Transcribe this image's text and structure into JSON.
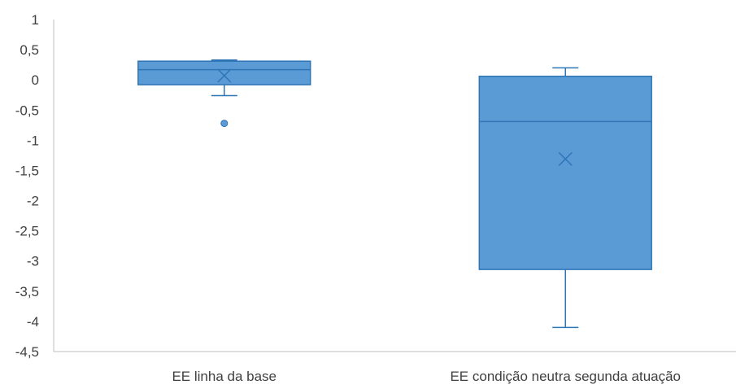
{
  "chart_data": {
    "type": "box",
    "title": "",
    "xlabel": "",
    "ylabel": "",
    "ylim": [
      -4.5,
      1
    ],
    "yticks": [
      1,
      0.5,
      0,
      -0.5,
      -1,
      -1.5,
      -2,
      -2.5,
      -3,
      -3.5,
      -4,
      -4.5
    ],
    "ytick_labels": [
      "1",
      "0,5",
      "0",
      "-0,5",
      "-1",
      "-1,5",
      "-2",
      "-2,5",
      "-3",
      "-3,5",
      "-4",
      "-4,5"
    ],
    "grid": false,
    "legend": "none",
    "colors": {
      "box_fill": "#5B9BD5",
      "box_stroke": "#2E75B6",
      "axis": "#BFBFBF",
      "text": "#404040"
    },
    "categories": [
      "EE linha da base",
      "EE condição neutra segunda atuação"
    ],
    "boxes": [
      {
        "category": "EE linha da base",
        "whisker_low": -0.26,
        "q1": -0.08,
        "median": 0.17,
        "q3": 0.31,
        "whisker_high": 0.33,
        "mean": 0.07,
        "outliers": [
          -0.72
        ]
      },
      {
        "category": "EE condição neutra segunda atuação",
        "whisker_low": -4.1,
        "q1": -3.14,
        "median": -0.69,
        "q3": 0.06,
        "whisker_high": 0.2,
        "mean": -1.31,
        "outliers": []
      }
    ]
  }
}
